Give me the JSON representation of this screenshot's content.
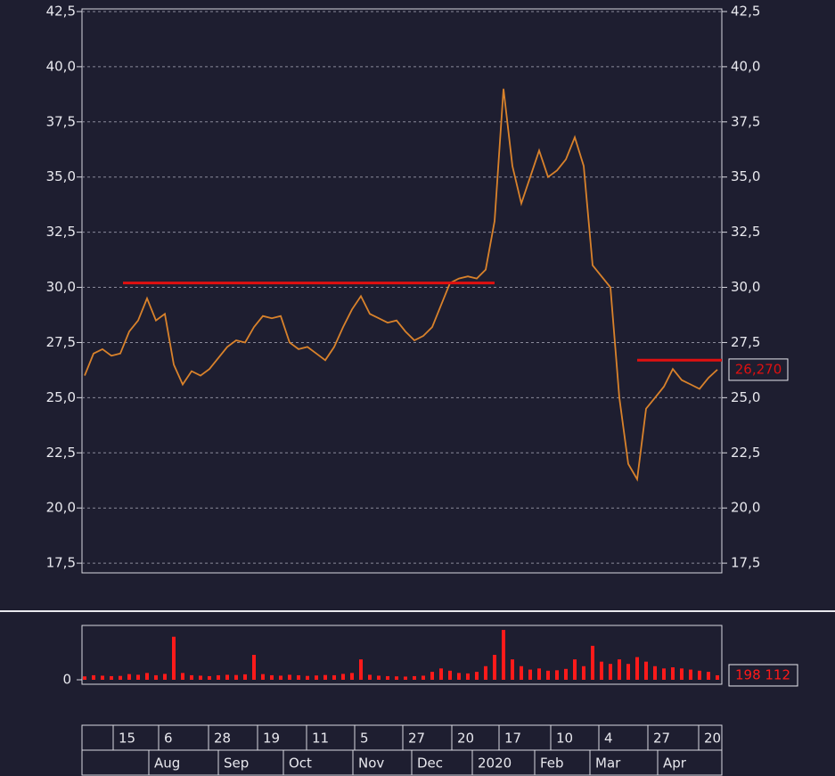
{
  "chart_data": {
    "type": "line",
    "ylim": [
      17.06,
      42.62
    ],
    "yticks": [
      {
        "value": 17.5,
        "label": "17,5"
      },
      {
        "value": 20,
        "label": "20,0"
      },
      {
        "value": 22.5,
        "label": "22,5"
      },
      {
        "value": 25,
        "label": "25,0"
      },
      {
        "value": 27.5,
        "label": "27,5"
      },
      {
        "value": 30,
        "label": "30,0"
      },
      {
        "value": 32.5,
        "label": "32,5"
      },
      {
        "value": 35,
        "label": "35,0"
      },
      {
        "value": 37.5,
        "label": "37,5"
      },
      {
        "value": 40,
        "label": "40,0"
      },
      {
        "value": 42.5,
        "label": "42,5"
      }
    ],
    "grid": true,
    "series": [
      {
        "color": "#d9822b",
        "values": [
          26.0,
          27.0,
          27.2,
          26.9,
          27.0,
          28.0,
          28.5,
          29.5,
          28.5,
          28.8,
          26.5,
          25.6,
          26.2,
          26.0,
          26.3,
          26.8,
          27.3,
          27.6,
          27.5,
          28.2,
          28.7,
          28.6,
          28.7,
          27.5,
          27.2,
          27.3,
          27.0,
          26.7,
          27.3,
          28.2,
          29.0,
          29.6,
          28.8,
          28.6,
          28.4,
          28.5,
          28.0,
          27.6,
          27.8,
          28.2,
          29.2,
          30.2,
          30.4,
          30.5,
          30.4,
          30.8,
          33.0,
          39.0,
          35.5,
          33.8,
          35.0,
          36.2,
          35.0,
          35.3,
          35.8,
          36.8,
          35.5,
          31.0,
          30.5,
          30.0,
          25.0,
          22.0,
          21.3,
          24.5,
          25.0,
          25.5,
          26.3,
          25.8,
          25.6,
          25.4,
          25.9,
          26.27
        ]
      }
    ],
    "levels": [
      30.2,
      26.7
    ],
    "level_color": "#e01010",
    "last_price": {
      "value": 26.27,
      "label": "26,270"
    },
    "volume": {
      "type": "bar",
      "color": "#ff1a1a",
      "ylim": [
        0,
        2400000
      ],
      "yticks": [
        0
      ],
      "values": [
        150000,
        200000,
        180000,
        160000,
        170000,
        250000,
        220000,
        300000,
        200000,
        260000,
        1900000,
        300000,
        200000,
        180000,
        160000,
        200000,
        220000,
        210000,
        240000,
        1100000,
        250000,
        200000,
        180000,
        220000,
        200000,
        170000,
        190000,
        210000,
        200000,
        260000,
        300000,
        900000,
        220000,
        180000,
        160000,
        150000,
        140000,
        160000,
        180000,
        350000,
        500000,
        400000,
        300000,
        280000,
        350000,
        600000,
        1100000,
        2200000,
        900000,
        600000,
        450000,
        500000,
        400000,
        420000,
        480000,
        900000,
        600000,
        1500000,
        800000,
        700000,
        900000,
        700000,
        1000000,
        800000,
        600000,
        500000,
        550000,
        500000,
        450000,
        400000,
        350000,
        198112
      ],
      "last": {
        "value": 198112,
        "label": "198 112"
      }
    },
    "xaxis": {
      "days": [
        "15",
        "6",
        "28",
        "19",
        "11",
        "5",
        "27",
        "20",
        "17",
        "10",
        "4",
        "27",
        "20"
      ],
      "months": [
        "Aug",
        "Sep",
        "Oct",
        "Nov",
        "Dec",
        "2020",
        "Feb",
        "Mar",
        "Apr"
      ]
    }
  }
}
